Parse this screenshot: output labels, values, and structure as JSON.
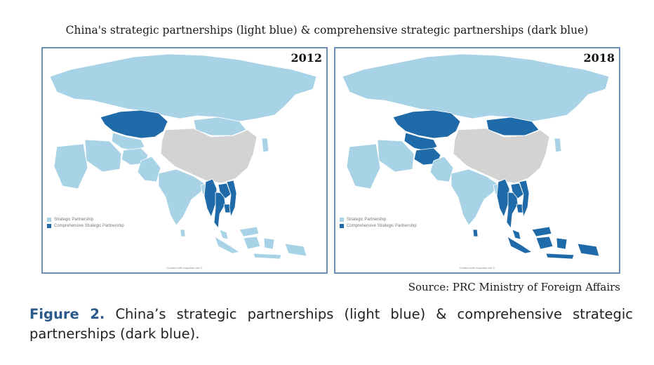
{
  "title": "China's strategic partnerships (light blue) & comprehensive strategic partnerships (dark blue)",
  "colors": {
    "strategic": "#a8d3e6",
    "comprehensive": "#1f6aa8",
    "china": "#d3d3d3",
    "other": "#ffffff",
    "border": "#6f8fb8"
  },
  "maps": [
    {
      "year": "2012",
      "legend": [
        "Strategic Partnership",
        "Comprehensive Strategic Partnership"
      ],
      "credit": "Created with mapchart.net ©",
      "comprehensive_regions": [
        "Kazakhstan",
        "Myanmar",
        "Laos",
        "Thailand",
        "Cambodia",
        "Vietnam"
      ]
    },
    {
      "year": "2018",
      "legend": [
        "Strategic Partnership",
        "Comprehensive Strategic Partnership"
      ],
      "credit": "Created with mapchart.net ©",
      "comprehensive_regions": [
        "Kazakhstan",
        "Uzbekistan",
        "Turkmenistan",
        "Tajikistan",
        "Kyrgyzstan",
        "Afghanistan",
        "Mongolia",
        "Myanmar",
        "Laos",
        "Thailand",
        "Cambodia",
        "Vietnam",
        "Malaysia",
        "Indonesia",
        "Sri Lanka"
      ]
    }
  ],
  "source": "Source: PRC Ministry of Foreign Affairs",
  "caption": {
    "label": "Figure 2.",
    "text": "China’s strategic partnerships (light blue) & comprehensive strategic partnerships (dark blue)."
  }
}
